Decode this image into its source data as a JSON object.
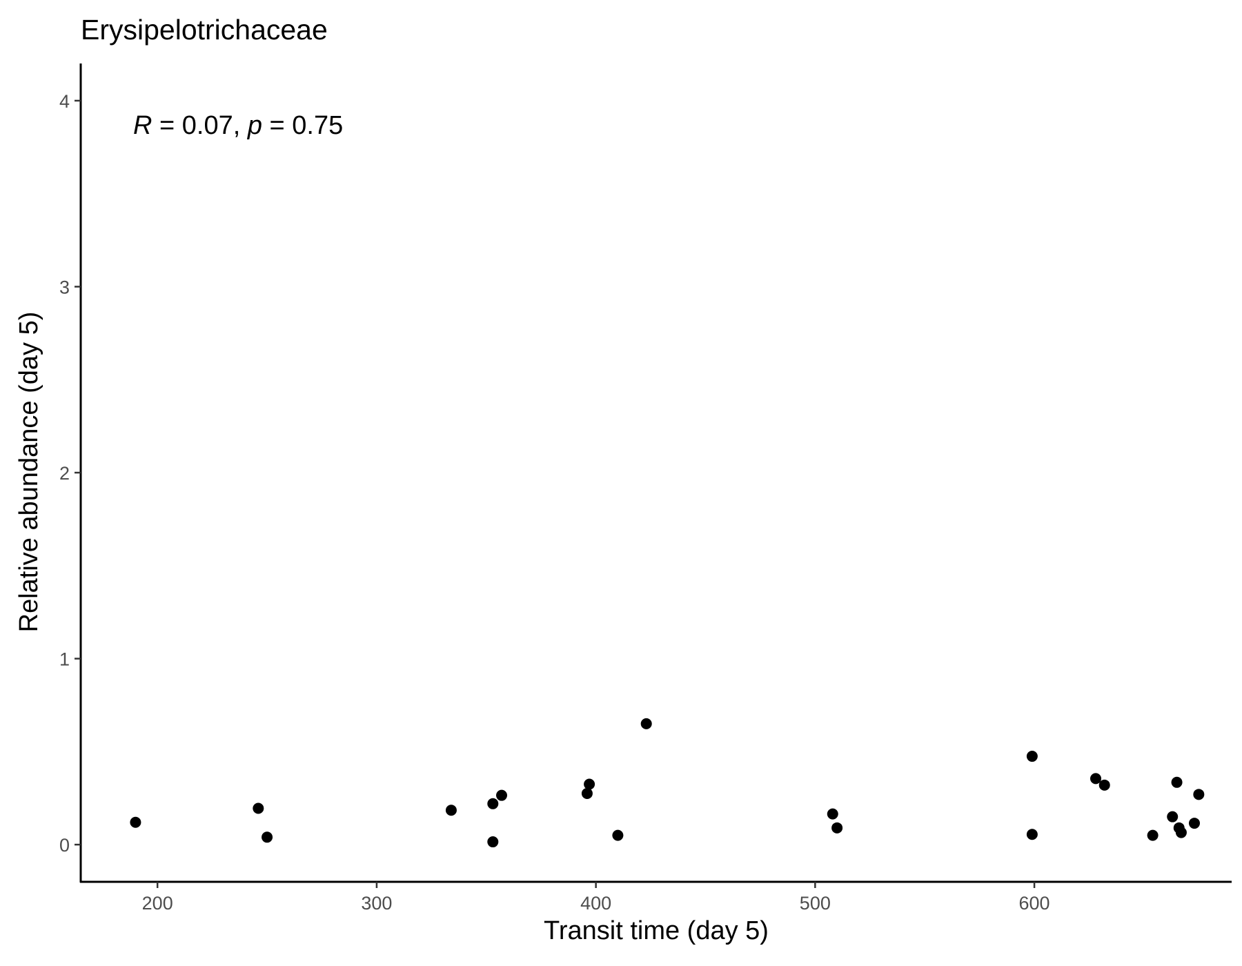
{
  "chart_data": {
    "type": "scatter",
    "title": "Erysipelotrichaceae",
    "xlabel": "Transit time (day 5)",
    "ylabel": "Relative abundance (day 5)",
    "xlim": [
      165,
      690
    ],
    "ylim": [
      -0.2,
      4.2
    ],
    "xticks": [
      200,
      300,
      400,
      500,
      600
    ],
    "yticks": [
      0,
      1,
      2,
      3,
      4
    ],
    "grid": false,
    "annotation": {
      "r_label": "R",
      "r_text": " = 0.07, ",
      "p_label": "p",
      "p_text": " = 0.75"
    },
    "points": [
      {
        "x": 190,
        "y": 0.12
      },
      {
        "x": 246,
        "y": 0.195
      },
      {
        "x": 250,
        "y": 0.04
      },
      {
        "x": 334,
        "y": 0.185
      },
      {
        "x": 353,
        "y": 0.22
      },
      {
        "x": 353,
        "y": 0.015
      },
      {
        "x": 357,
        "y": 0.265
      },
      {
        "x": 396,
        "y": 0.275
      },
      {
        "x": 397,
        "y": 0.325
      },
      {
        "x": 410,
        "y": 0.05
      },
      {
        "x": 423,
        "y": 0.65
      },
      {
        "x": 508,
        "y": 0.165
      },
      {
        "x": 510,
        "y": 0.09
      },
      {
        "x": 599,
        "y": 0.475
      },
      {
        "x": 599,
        "y": 0.055
      },
      {
        "x": 628,
        "y": 0.355
      },
      {
        "x": 632,
        "y": 0.32
      },
      {
        "x": 654,
        "y": 0.05
      },
      {
        "x": 663,
        "y": 0.15
      },
      {
        "x": 665,
        "y": 0.335
      },
      {
        "x": 666,
        "y": 0.09
      },
      {
        "x": 667,
        "y": 0.065
      },
      {
        "x": 673,
        "y": 0.115
      },
      {
        "x": 675,
        "y": 0.27
      }
    ]
  }
}
